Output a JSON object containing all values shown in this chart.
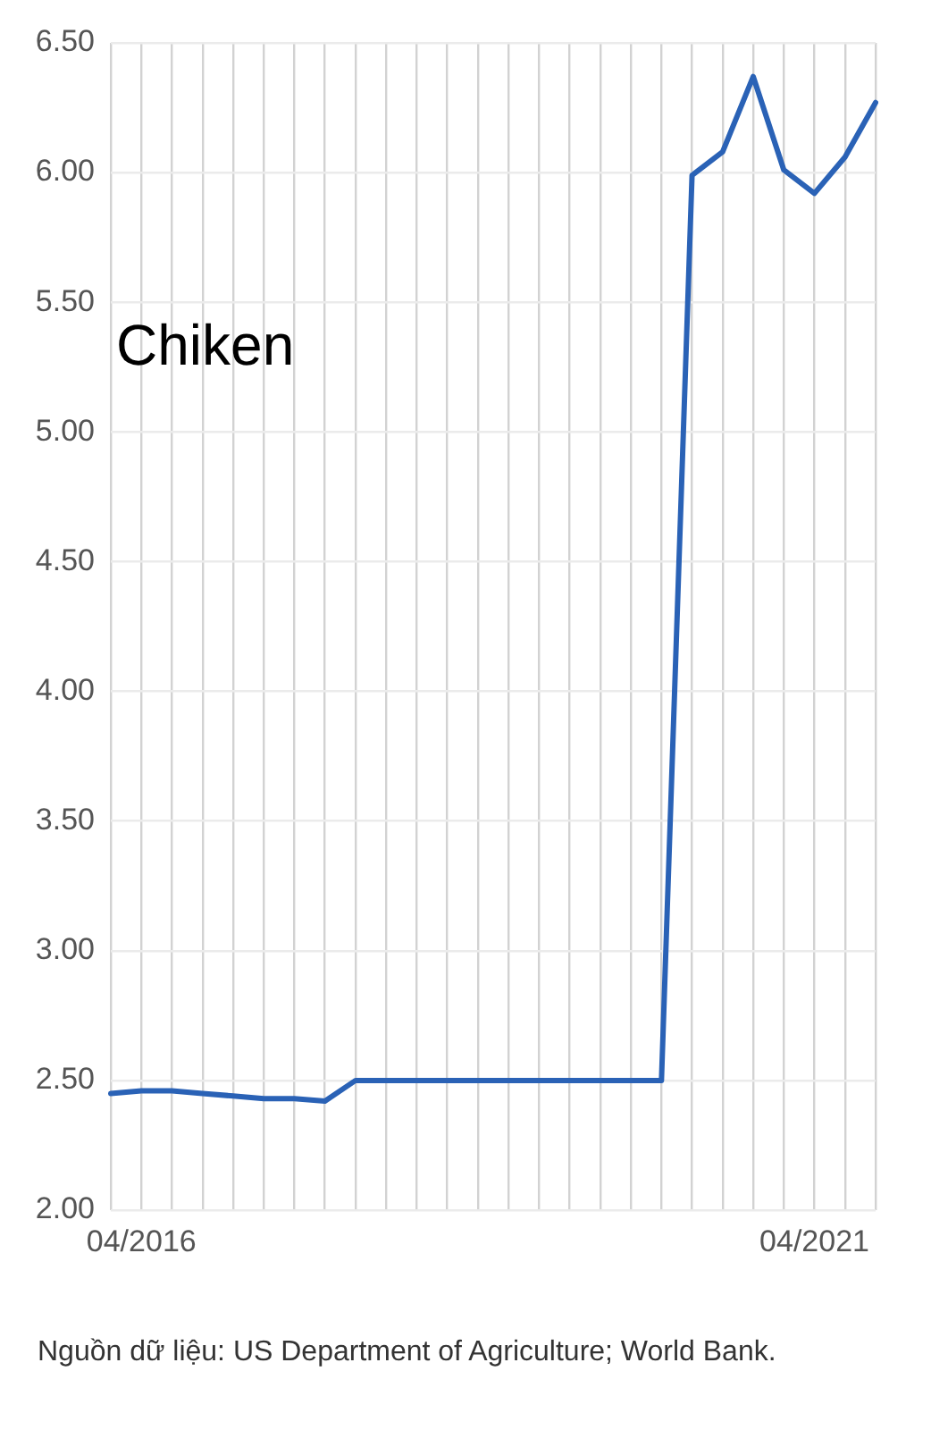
{
  "chart_data": {
    "type": "line",
    "title": "Chiken",
    "categories": [
      null,
      "04/2016",
      null,
      null,
      null,
      null,
      null,
      null,
      null,
      null,
      null,
      null,
      null,
      null,
      null,
      null,
      null,
      null,
      null,
      null,
      null,
      null,
      null,
      "04/2021",
      null,
      null
    ],
    "values": [
      2.45,
      2.46,
      2.46,
      2.45,
      2.44,
      2.43,
      2.43,
      2.42,
      2.5,
      2.5,
      2.5,
      2.5,
      2.5,
      2.5,
      2.5,
      2.5,
      2.5,
      2.5,
      2.5,
      5.99,
      6.08,
      6.37,
      6.01,
      5.92,
      6.06,
      6.27
    ],
    "color": "#2a62b6",
    "ylim": [
      2,
      6.5
    ],
    "yticks": [
      {
        "value": 2,
        "label": "2.00"
      },
      {
        "value": 2.5,
        "label": "2.50"
      },
      {
        "value": 3,
        "label": "3.00"
      },
      {
        "value": 3.5,
        "label": "3.50"
      },
      {
        "value": 4,
        "label": "4.00"
      },
      {
        "value": 4.5,
        "label": "4.50"
      },
      {
        "value": 5,
        "label": "5.00"
      },
      {
        "value": 5.5,
        "label": "5.50"
      },
      {
        "value": 6,
        "label": "6.00"
      },
      {
        "value": 6.5,
        "label": "6.50"
      }
    ],
    "grid": true,
    "marker": "none",
    "annotations": [
      "Nguồn dữ liệu: US Department of Agriculture; World Bank."
    ]
  }
}
